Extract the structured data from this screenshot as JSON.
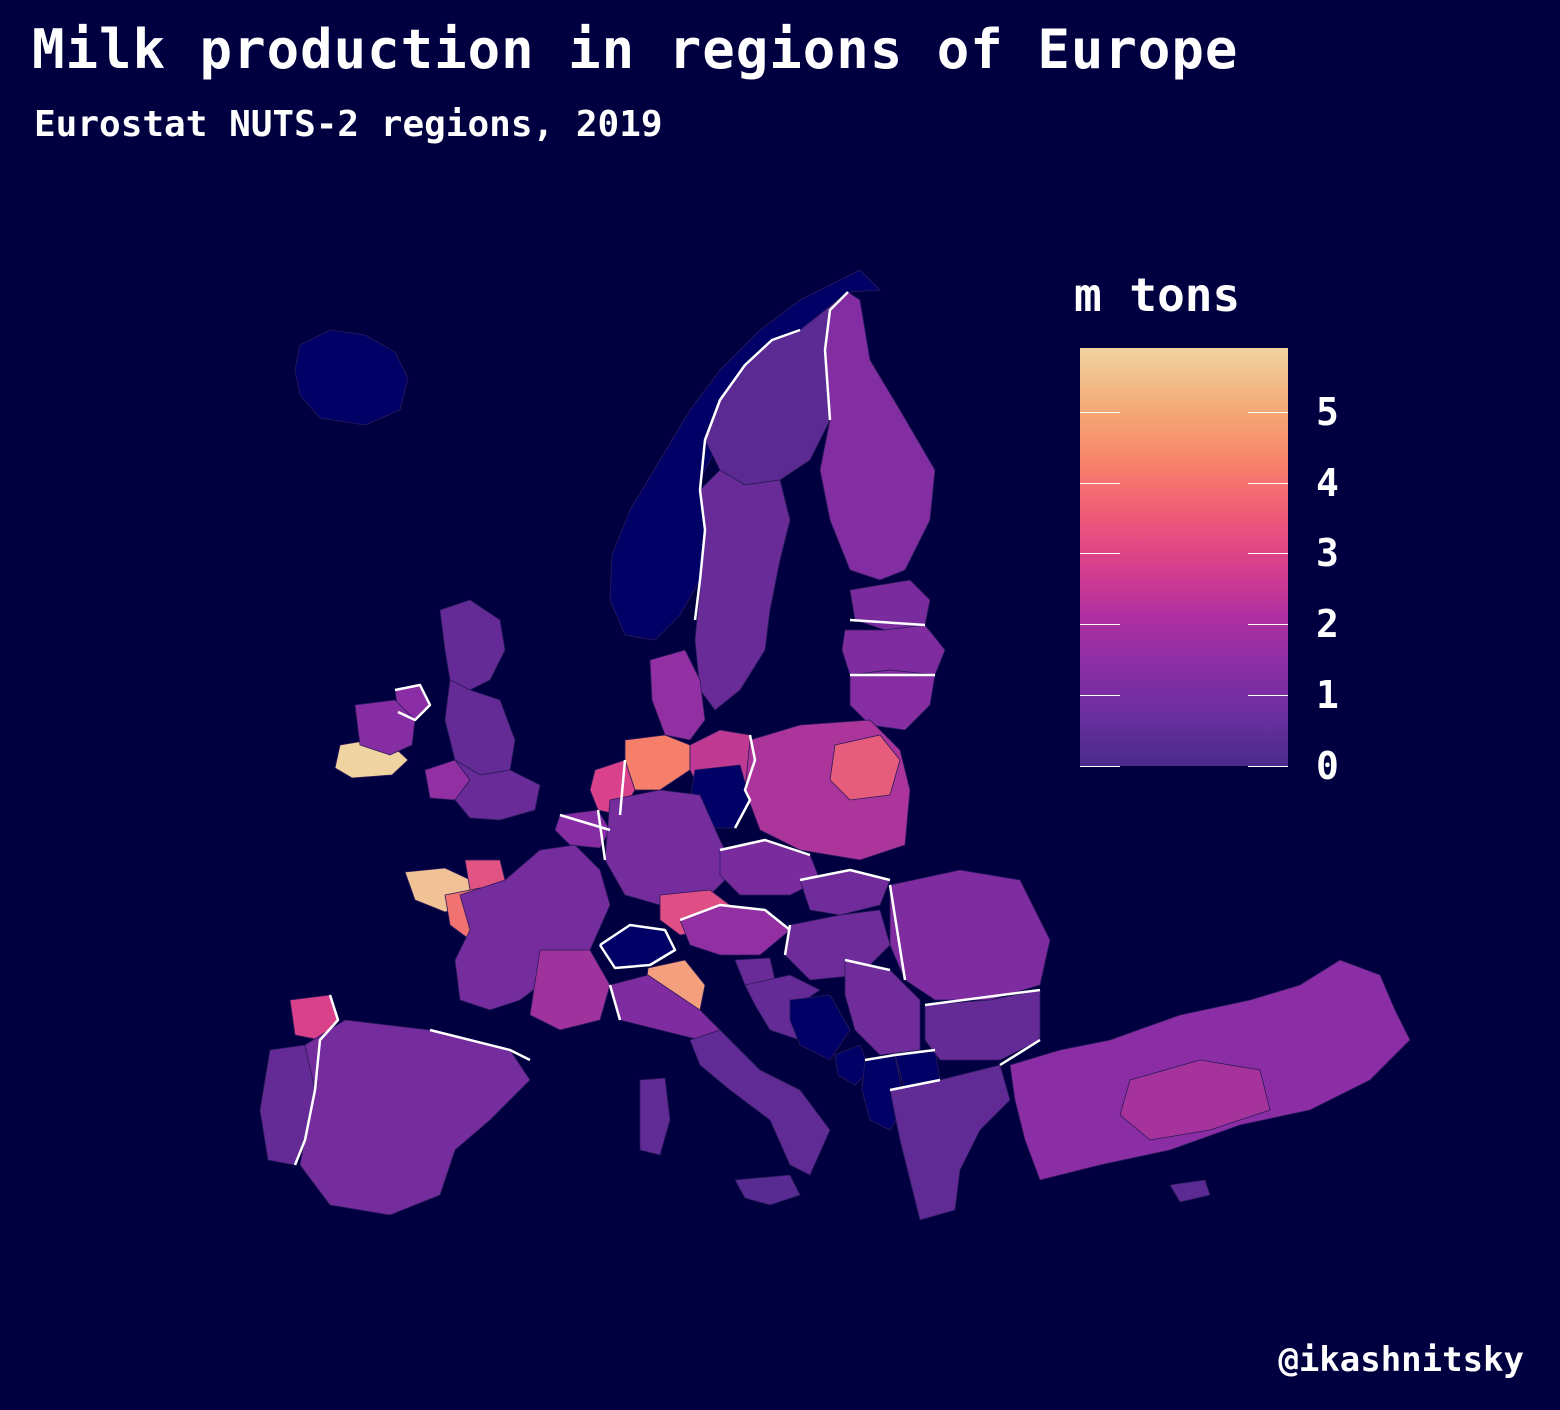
{
  "title": "Milk production in regions of Europe",
  "subtitle": "Eurostat NUTS-2 regions, 2019",
  "caption": "@ikashnitsky",
  "legend": {
    "title": "m tons",
    "ticks": [
      "0",
      "1",
      "2",
      "3",
      "4",
      "5"
    ],
    "range": [
      0,
      5.9
    ],
    "palette": [
      "#4a2a8c",
      "#8a2da5",
      "#d83f8c",
      "#f7806a",
      "#efd3a0"
    ]
  },
  "colors": {
    "background": "#000040",
    "no_data": "#000066",
    "borders": "#ffffff"
  },
  "map_data": {
    "variable": "milk production, m tons",
    "regions": [
      {
        "id": "iceland",
        "value": null
      },
      {
        "id": "norway",
        "value": null
      },
      {
        "id": "sweden-north",
        "value": 0.4
      },
      {
        "id": "sweden-south",
        "value": 0.7
      },
      {
        "id": "finland",
        "value": 1.3
      },
      {
        "id": "estonia",
        "value": 1.1
      },
      {
        "id": "latvia",
        "value": 1.2
      },
      {
        "id": "lithuania",
        "value": 1.4
      },
      {
        "id": "scotland",
        "value": 0.6
      },
      {
        "id": "northern-ireland",
        "value": 1.5
      },
      {
        "id": "ireland-south",
        "value": 5.9
      },
      {
        "id": "ireland-north",
        "value": 1.4
      },
      {
        "id": "england-north",
        "value": 0.6
      },
      {
        "id": "wales",
        "value": 1.6
      },
      {
        "id": "england-south",
        "value": 0.7
      },
      {
        "id": "denmark",
        "value": 1.6
      },
      {
        "id": "netherlands",
        "value": 3.0
      },
      {
        "id": "belgium",
        "value": 1.4
      },
      {
        "id": "germany-north",
        "value": 4.4
      },
      {
        "id": "germany-northeast",
        "value": 2.5
      },
      {
        "id": "berlin",
        "value": null
      },
      {
        "id": "germany-central",
        "value": 1.0
      },
      {
        "id": "bavaria",
        "value": 3.3
      },
      {
        "id": "poland",
        "value": 2.1
      },
      {
        "id": "mazowieckie",
        "value": 3.6
      },
      {
        "id": "bretagne",
        "value": 5.6
      },
      {
        "id": "normandie",
        "value": 3.4
      },
      {
        "id": "pays-de-la-loire",
        "value": 4.1
      },
      {
        "id": "france-central",
        "value": 1.0
      },
      {
        "id": "france-east",
        "value": 1.9
      },
      {
        "id": "switzerland",
        "value": null
      },
      {
        "id": "austria",
        "value": 1.6
      },
      {
        "id": "czechia",
        "value": 1.1
      },
      {
        "id": "lombardia",
        "value": 5.0
      },
      {
        "id": "italy-north",
        "value": 1.2
      },
      {
        "id": "italy-south",
        "value": 0.5
      },
      {
        "id": "sardinia",
        "value": 0.5
      },
      {
        "id": "sicily",
        "value": 0.3
      },
      {
        "id": "galicia",
        "value": 3.0
      },
      {
        "id": "portugal",
        "value": 0.6
      },
      {
        "id": "spain",
        "value": 1.0
      },
      {
        "id": "slovakia",
        "value": 0.9
      },
      {
        "id": "hungary",
        "value": 0.8
      },
      {
        "id": "slovenia",
        "value": 0.7
      },
      {
        "id": "croatia",
        "value": 0.6
      },
      {
        "id": "bosnia",
        "value": null
      },
      {
        "id": "serbia",
        "value": 0.9
      },
      {
        "id": "montenegro",
        "value": null
      },
      {
        "id": "albania",
        "value": null
      },
      {
        "id": "north-macedonia",
        "value": null
      },
      {
        "id": "romania",
        "value": 1.2
      },
      {
        "id": "bulgaria",
        "value": 0.6
      },
      {
        "id": "greece",
        "value": 0.5
      },
      {
        "id": "turkey",
        "value": 1.5
      },
      {
        "id": "turkey-central",
        "value": 2.0
      },
      {
        "id": "cyprus",
        "value": 0.4
      }
    ]
  }
}
